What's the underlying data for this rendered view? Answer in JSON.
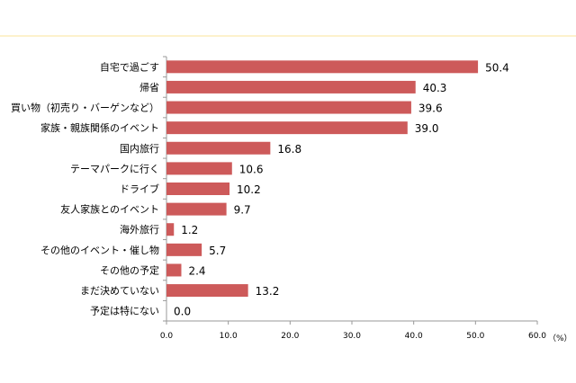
{
  "chart_data": {
    "type": "bar",
    "orientation": "horizontal",
    "categories": [
      "自宅で過ごす",
      "帰省",
      "買い物（初売り・バーゲンなど）",
      "家族・親族関係のイベント",
      "国内旅行",
      "テーマパークに行く",
      "ドライブ",
      "友人家族とのイベント",
      "海外旅行",
      "その他のイベント・催し物",
      "その他の予定",
      "まだ決めていない",
      "予定は特にない"
    ],
    "values": [
      50.4,
      40.3,
      39.6,
      39.0,
      16.8,
      10.6,
      10.2,
      9.7,
      1.2,
      5.7,
      2.4,
      13.2,
      0.0
    ],
    "xlim": [
      0,
      60
    ],
    "xticks": [
      "0.0",
      "10.0",
      "20.0",
      "30.0",
      "40.0",
      "50.0",
      "60.0"
    ],
    "xunit": "（%）",
    "grid": false,
    "colors": {
      "bar": "#cd5a5a",
      "top_line": "#fdf1cc"
    }
  }
}
